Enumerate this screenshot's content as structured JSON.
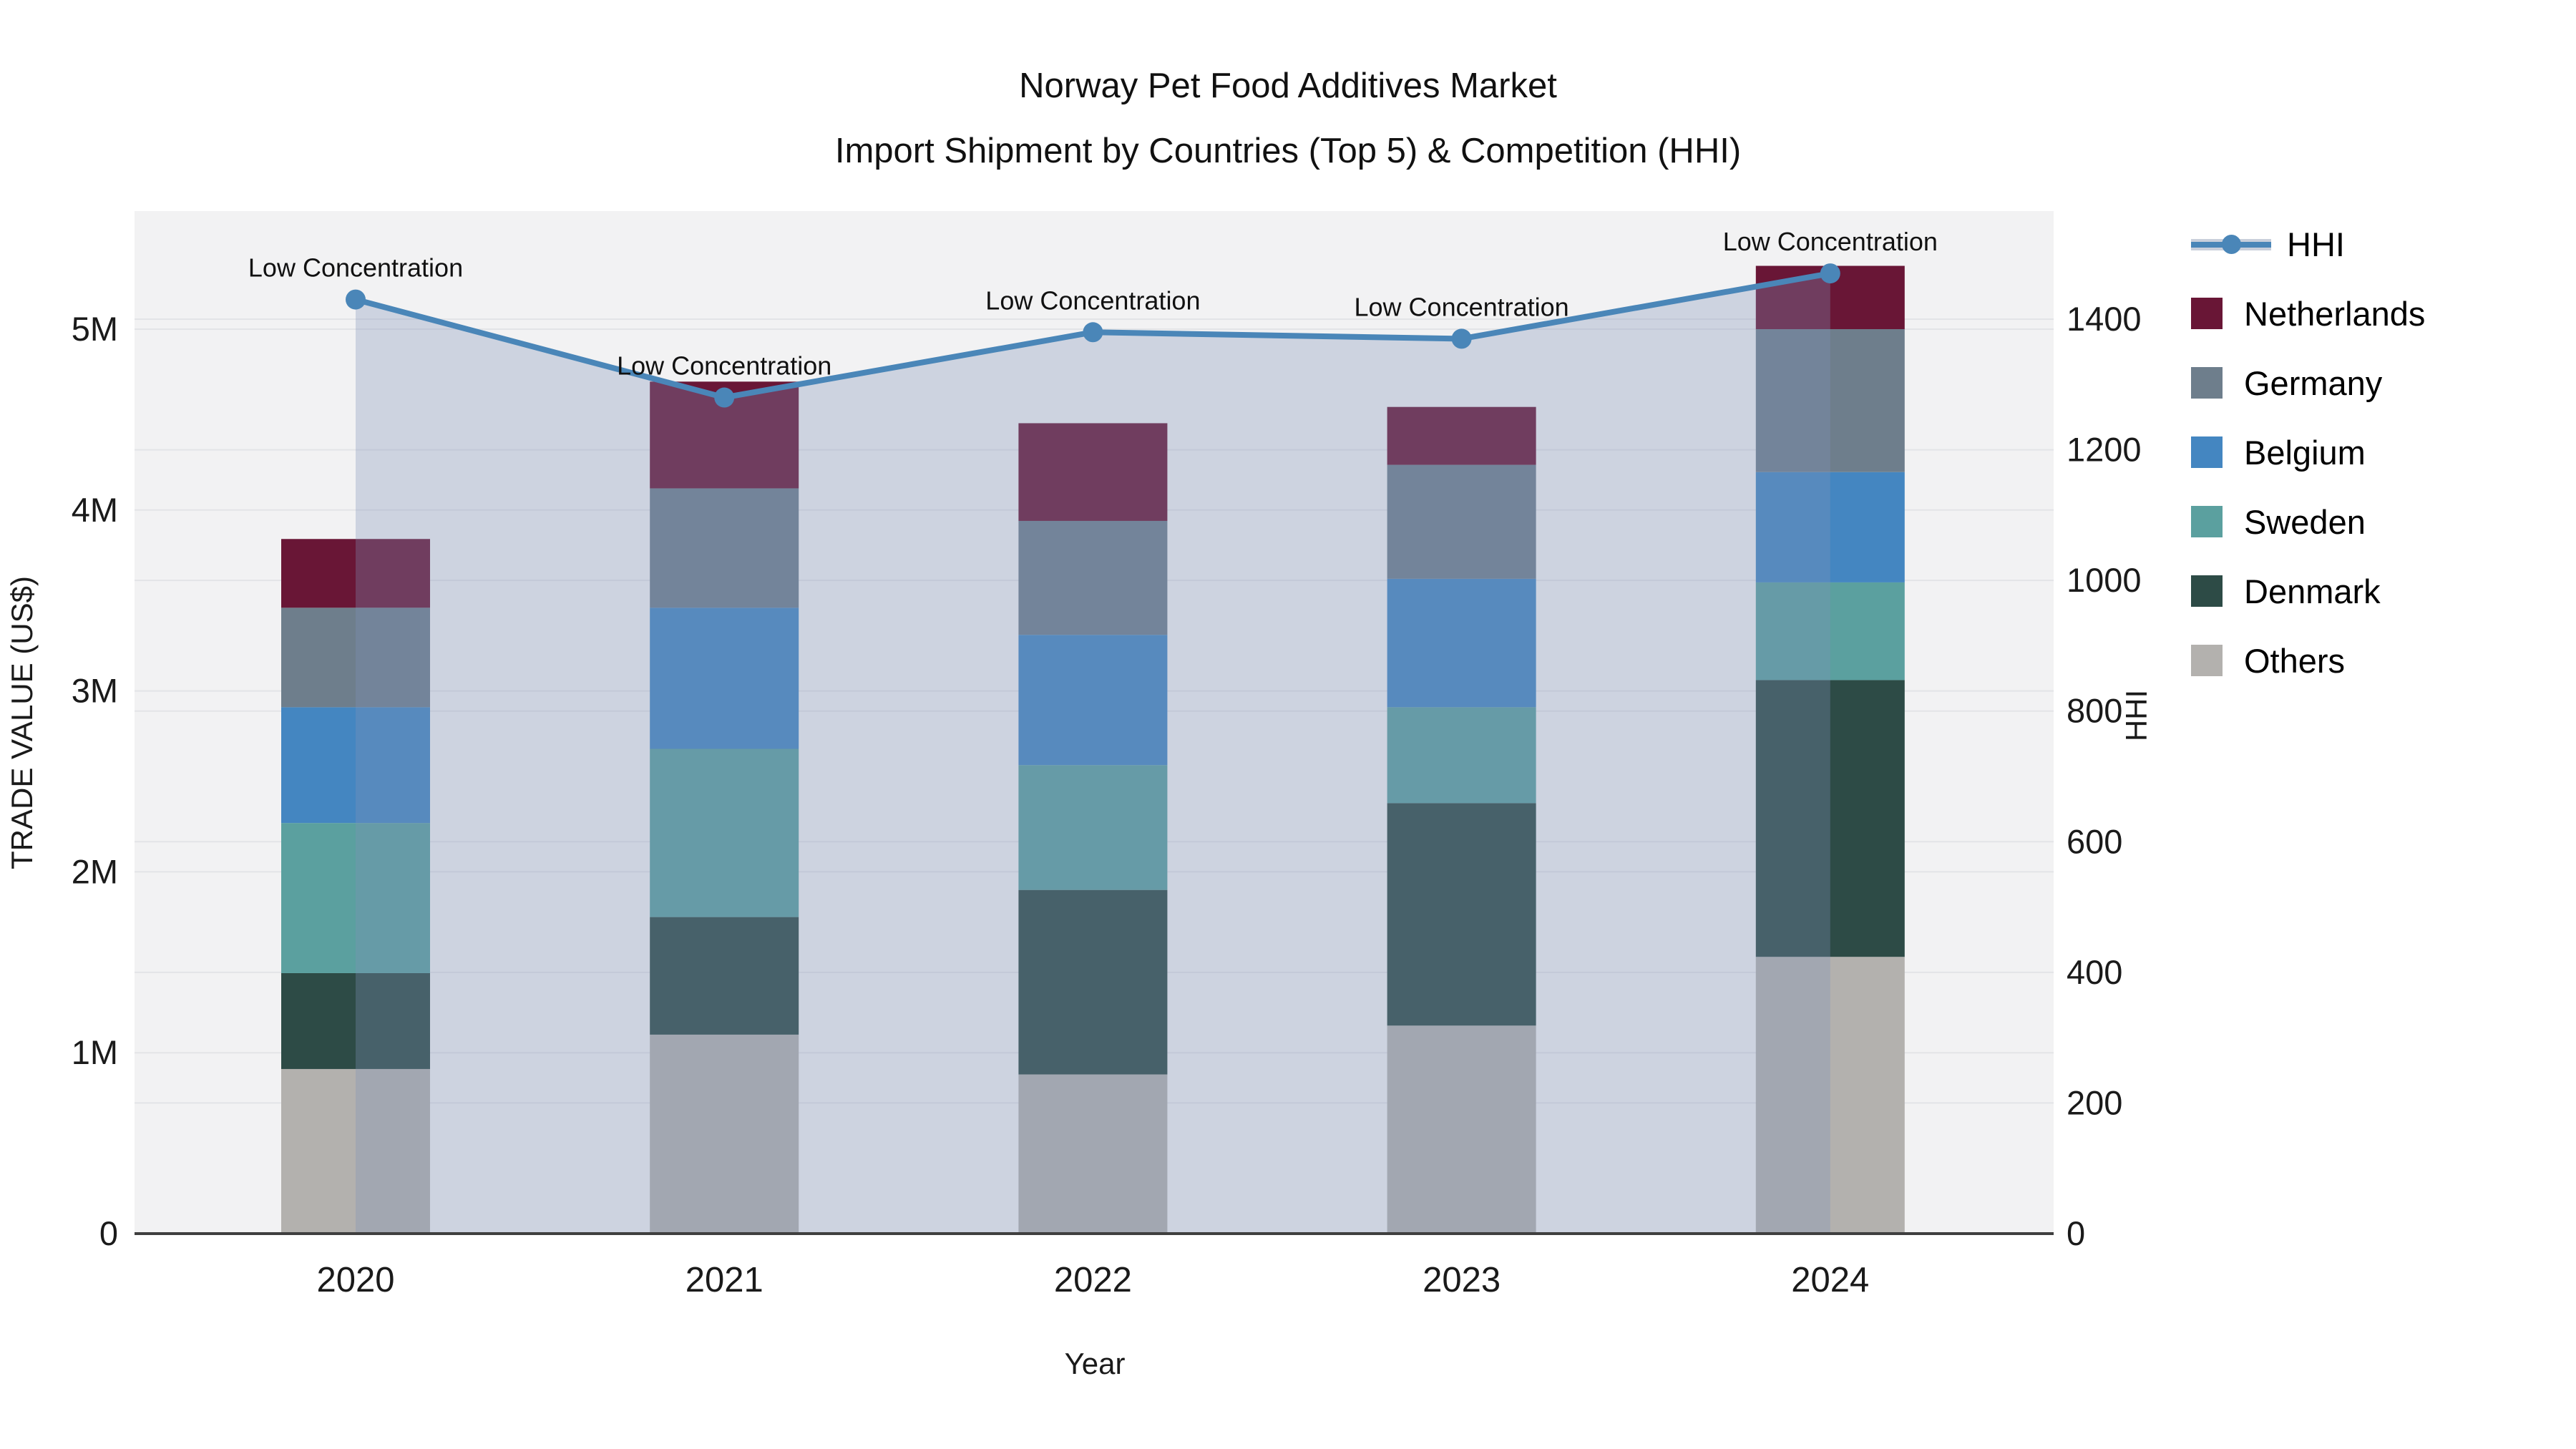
{
  "title": {
    "line1": "Norway Pet Food Additives Market",
    "line2": "Import Shipment by Countries (Top 5) & Competition (HHI)"
  },
  "axes": {
    "x_label": "Year",
    "y_left_label": "TRADE VALUE (US$)",
    "y_right_label": "HHI",
    "y_left_ticks": [
      "0",
      "1M",
      "2M",
      "3M",
      "4M",
      "5M"
    ],
    "y_right_ticks": [
      "0",
      "200",
      "400",
      "600",
      "800",
      "1000",
      "1200",
      "1400"
    ]
  },
  "chart_data": {
    "type": "combo-stacked-bar-line",
    "title": "Norway Pet Food Additives Market — Import Shipment by Countries (Top 5) & Competition (HHI)",
    "categories": [
      "2020",
      "2021",
      "2022",
      "2023",
      "2024"
    ],
    "ylabel_left": "TRADE VALUE (US$)",
    "ylabel_right": "HHI",
    "xlabel": "Year",
    "ylim_left_usd": [
      0,
      5650000
    ],
    "ylim_right_hhi": [
      0,
      1565
    ],
    "grid": true,
    "legend_position": "right",
    "series": [
      {
        "name": "Netherlands",
        "color": "#691636",
        "values_usd": [
          380000,
          590000,
          540000,
          320000,
          350000
        ]
      },
      {
        "name": "Germany",
        "color": "#6e7e8c",
        "values_usd": [
          550000,
          660000,
          630000,
          630000,
          790000
        ]
      },
      {
        "name": "Belgium",
        "color": "#4486c1",
        "values_usd": [
          640000,
          780000,
          720000,
          710000,
          610000
        ]
      },
      {
        "name": "Sweden",
        "color": "#5ba09f",
        "values_usd": [
          830000,
          930000,
          690000,
          530000,
          540000
        ]
      },
      {
        "name": "Denmark",
        "color": "#2d4b46",
        "values_usd": [
          530000,
          650000,
          1020000,
          1230000,
          1530000
        ]
      },
      {
        "name": "Others",
        "color": "#b3b1ae",
        "values_usd": [
          910000,
          1100000,
          880000,
          1150000,
          1530000
        ]
      }
    ],
    "bar_totals_usd": [
      3840000,
      4710000,
      4480000,
      4570000,
      5350000
    ],
    "stack_order_bottom_to_top": [
      "Others",
      "Denmark",
      "Sweden",
      "Belgium",
      "Germany",
      "Netherlands"
    ],
    "line_series": {
      "name": "HHI",
      "color": "#4a86b8",
      "area_fill_color": "rgba(128,146,184,0.32)",
      "values": [
        1430,
        1280,
        1380,
        1370,
        1470
      ]
    },
    "annotation_text": "Low Concentration",
    "annotations": [
      "Low Concentration",
      "Low Concentration",
      "Low Concentration",
      "Low Concentration",
      "Low Concentration"
    ],
    "legend_order": [
      "HHI",
      "Netherlands",
      "Germany",
      "Belgium",
      "Sweden",
      "Denmark",
      "Others"
    ],
    "plot_background_color": "#f2f2f3",
    "gridline_color": "#e3e4e7",
    "axis_line_color": "#3f3f3f"
  }
}
